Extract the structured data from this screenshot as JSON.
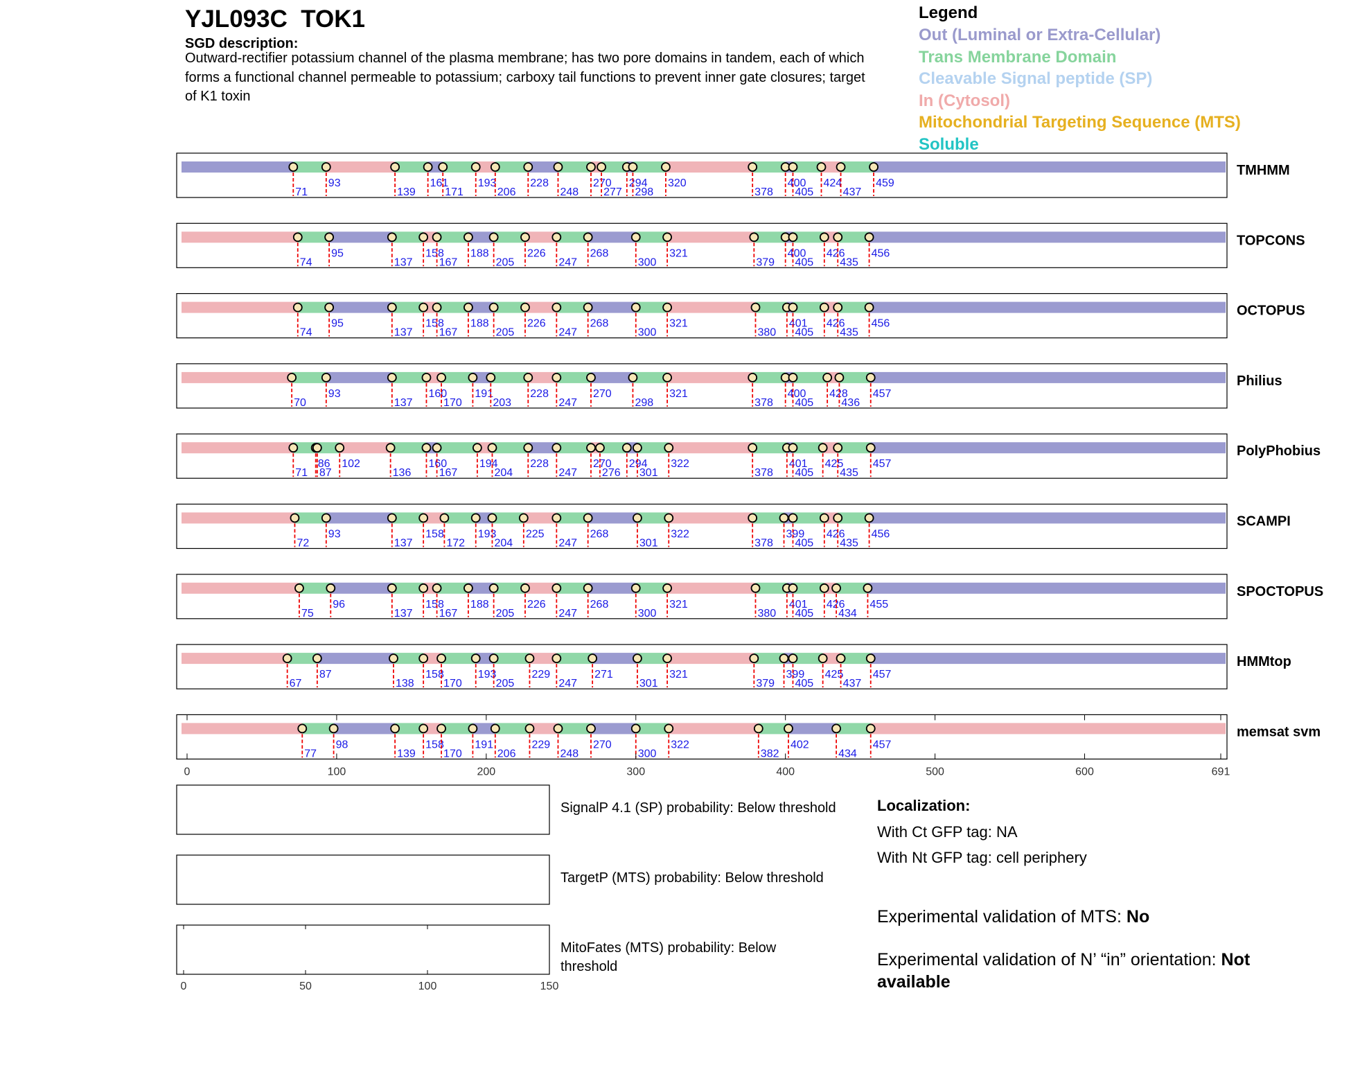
{
  "header": {
    "title": "YJL093C  TOK1",
    "sgd_label": "SGD description:",
    "description": "Outward-rectifier potassium channel of the plasma membrane; has two pore domains in tandem, each of which forms a functional channel permeable to potassium; carboxy tail functions to prevent inner gate closures; target of K1 toxin"
  },
  "legend": {
    "title": "Legend",
    "items": [
      {
        "label": "Out (Luminal or Extra-Cellular)",
        "color": "#9a9acc"
      },
      {
        "label": "Trans Membrane Domain",
        "color": "#86d49c"
      },
      {
        "label": "Cleavable Signal peptide (SP)",
        "color": "#b4d2f0"
      },
      {
        "label": "In (Cytosol)",
        "color": "#f0aaaa"
      },
      {
        "label": "Mitochondrial Targeting Sequence (MTS)",
        "color": "#e6b020"
      },
      {
        "label": "Soluble",
        "color": "#22c4c4"
      }
    ]
  },
  "chart_data": {
    "type": "topology",
    "xlim": [
      0,
      691
    ],
    "xticks": [
      0,
      100,
      200,
      300,
      400,
      500,
      600,
      691
    ],
    "colors": {
      "out": "#9b9bd0",
      "tm": "#90d8a8",
      "in": "#f0b4b8"
    },
    "tracks": [
      {
        "name": "TMHMM",
        "start": "out",
        "boundaries": [
          71,
          93,
          139,
          161,
          171,
          193,
          206,
          228,
          248,
          270,
          277,
          294,
          298,
          320,
          378,
          400,
          405,
          424,
          437,
          459
        ]
      },
      {
        "name": "TOPCONS",
        "start": "in",
        "boundaries": [
          74,
          95,
          137,
          158,
          167,
          188,
          205,
          226,
          247,
          268,
          300,
          321,
          379,
          400,
          405,
          426,
          435,
          456
        ]
      },
      {
        "name": "OCTOPUS",
        "start": "in",
        "boundaries": [
          74,
          95,
          137,
          158,
          167,
          188,
          205,
          226,
          247,
          268,
          300,
          321,
          380,
          401,
          405,
          426,
          435,
          456
        ]
      },
      {
        "name": "Philius",
        "start": "in",
        "boundaries": [
          70,
          93,
          137,
          160,
          170,
          191,
          203,
          228,
          247,
          270,
          298,
          321,
          378,
          400,
          405,
          428,
          436,
          457
        ]
      },
      {
        "name": "PolyPhobius",
        "start": "in",
        "boundaries": [
          71,
          86,
          87,
          102,
          136,
          160,
          167,
          194,
          204,
          228,
          247,
          270,
          276,
          294,
          301,
          322,
          378,
          401,
          405,
          425,
          435,
          457
        ]
      },
      {
        "name": "SCAMPI",
        "start": "in",
        "boundaries": [
          72,
          93,
          137,
          158,
          172,
          193,
          204,
          225,
          247,
          268,
          301,
          322,
          378,
          399,
          405,
          426,
          435,
          456
        ]
      },
      {
        "name": "SPOCTOPUS",
        "start": "in",
        "boundaries": [
          75,
          96,
          137,
          158,
          167,
          188,
          205,
          226,
          247,
          268,
          300,
          321,
          380,
          401,
          405,
          426,
          434,
          455
        ]
      },
      {
        "name": "HMMtop",
        "start": "in",
        "boundaries": [
          67,
          87,
          138,
          158,
          170,
          193,
          205,
          229,
          247,
          271,
          301,
          321,
          379,
          399,
          405,
          425,
          437,
          457
        ]
      },
      {
        "name": "memsat svm",
        "start": "in",
        "boundaries": [
          77,
          98,
          139,
          158,
          170,
          191,
          206,
          229,
          248,
          270,
          300,
          322,
          382,
          402,
          434,
          457
        ]
      }
    ]
  },
  "probability": {
    "xlim": [
      0,
      150
    ],
    "xticks": [
      0,
      50,
      100,
      150
    ],
    "panels": [
      "SignalP 4.1 (SP) probability: Below threshold",
      "TargetP (MTS) probability: Below threshold",
      "MitoFates (MTS) probability: Below threshold"
    ]
  },
  "localization": {
    "title": "Localization:",
    "ct": "With Ct GFP tag: NA",
    "nt": "With Nt GFP tag: cell periphery",
    "mts_label": "Experimental validation of MTS: ",
    "mts_value": "No",
    "orient_label": "Experimental validation of N’ “in” orientation: ",
    "orient_value": "Not available"
  }
}
